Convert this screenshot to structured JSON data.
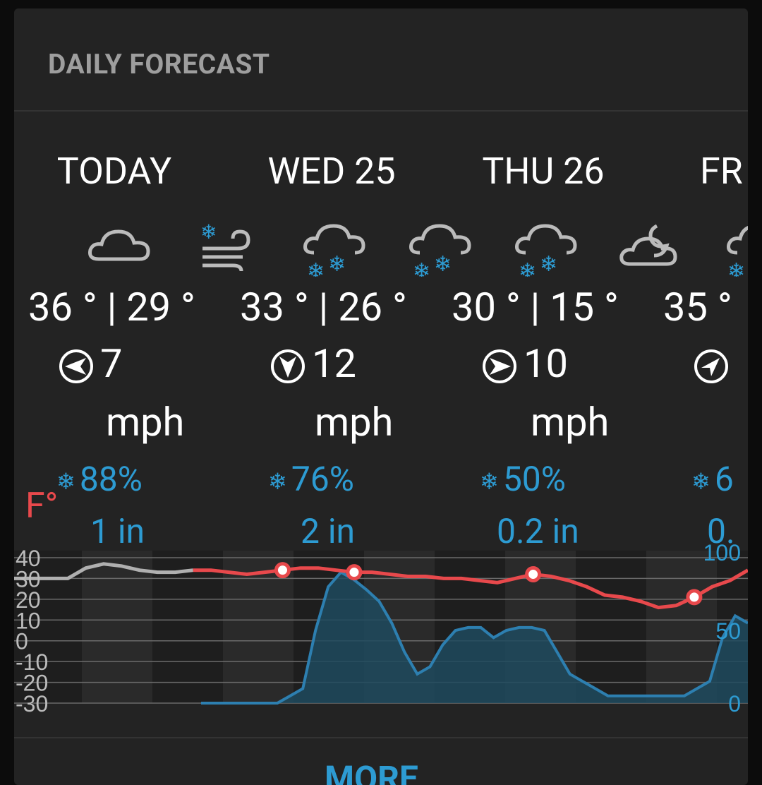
{
  "header": {
    "title": "DAILY FORECAST"
  },
  "days": [
    {
      "label": "TODAY",
      "temps": "36 ° | 29 °",
      "wind": "7",
      "wind_unit": "mph",
      "precip": "88%",
      "amount": "1 in"
    },
    {
      "label": "WED 25",
      "temps": "33 ° | 26 °",
      "wind": "12",
      "wind_unit": "mph",
      "precip": "76%",
      "amount": "2 in"
    },
    {
      "label": "THU 26",
      "temps": "30 ° | 15 °",
      "wind": "10",
      "wind_unit": "mph",
      "precip": "50%",
      "amount": "0.2 in"
    },
    {
      "label": "FR",
      "temps": "35 °",
      "wind": "",
      "wind_unit": "",
      "precip": "6",
      "amount": "0."
    }
  ],
  "icons": [
    "cloud-icon",
    "snow-wind-icon",
    "snow-cloud-icon",
    "snow-cloud-icon",
    "snow-cloud-icon",
    "partly-cloudy-night-icon",
    "snow-cloud-icon"
  ],
  "chart_data": {
    "type": "line",
    "temp_unit": "F°",
    "y_left_ticks": [
      "40",
      "30",
      "20",
      "10",
      "0",
      "-10",
      "-20",
      "-30"
    ],
    "y_right_ticks": [
      "100",
      "50",
      "0"
    ],
    "series": [
      {
        "values": [
          30,
          30,
          30,
          30,
          35,
          37,
          36,
          34,
          33,
          33,
          34,
          34,
          33,
          32,
          33,
          34,
          35,
          35,
          34,
          33,
          33,
          32,
          31,
          31,
          30,
          30,
          29,
          28,
          30,
          32,
          31,
          29,
          26,
          22,
          21,
          19,
          16,
          17,
          21,
          26,
          29,
          34
        ]
      },
      {
        "values": [
          0,
          0,
          0,
          0,
          0,
          0,
          0,
          5,
          10,
          50,
          80,
          90,
          85,
          78,
          70,
          55,
          35,
          20,
          25,
          40,
          50,
          52,
          52,
          45,
          50,
          52,
          52,
          50,
          35,
          20,
          15,
          10,
          5,
          5,
          5,
          5,
          5,
          5,
          5,
          10,
          15,
          45,
          60,
          55
        ]
      }
    ],
    "ylim_left": [
      -30,
      40
    ],
    "ylim_right": [
      0,
      100
    ]
  },
  "more_label": "MORE",
  "colors": {
    "temp": "#e8494c",
    "temp_past": "#b0b0b0",
    "precip": "#2d9bd2"
  }
}
